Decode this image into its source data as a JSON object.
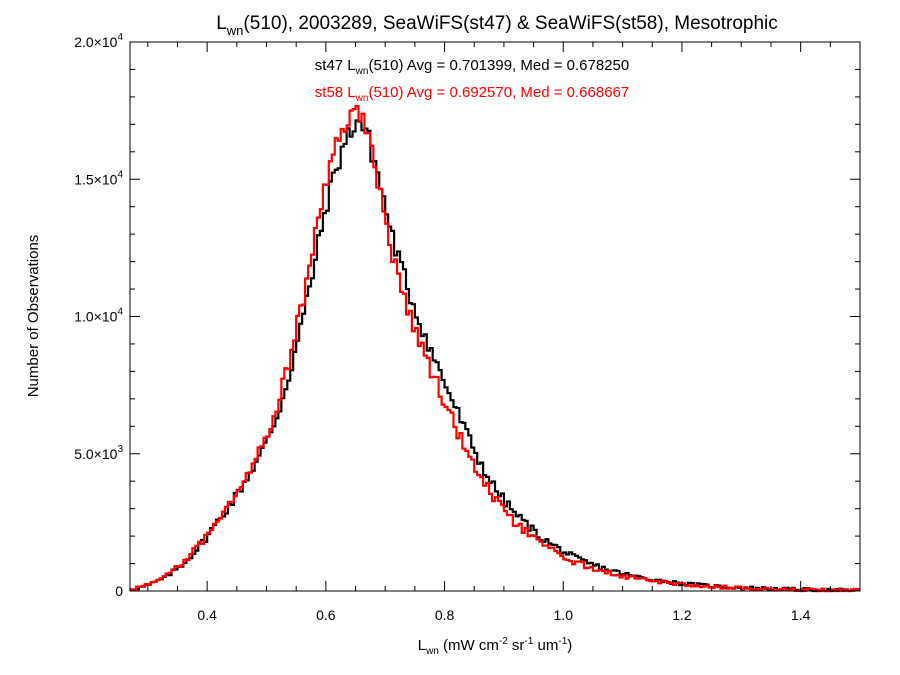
{
  "chart_data": {
    "type": "line",
    "title": {
      "main": "L",
      "sub": "wn",
      "rest": "(510), 2003289, SeaWiFS(st47) & SeaWiFS(st58), Mesotrophic"
    },
    "xlabel": {
      "main": "L",
      "sub": "wn",
      "units_pre": " (mW cm",
      "sup1": "-2",
      "mid1": " sr",
      "sup2": "-1",
      "mid2": " um",
      "sup3": "-1",
      "close": ")"
    },
    "ylabel": "Number of Observations",
    "xlim": [
      0.27,
      1.5
    ],
    "ylim": [
      0,
      20000
    ],
    "x_ticks": [
      {
        "value": 0.4,
        "label": "0.4"
      },
      {
        "value": 0.6,
        "label": "0.6"
      },
      {
        "value": 0.8,
        "label": "0.8"
      },
      {
        "value": 1.0,
        "label": "1.0"
      },
      {
        "value": 1.2,
        "label": "1.2"
      },
      {
        "value": 1.4,
        "label": "1.4"
      }
    ],
    "y_ticks": [
      {
        "value": 0,
        "mant": "0",
        "exp": ""
      },
      {
        "value": 5000,
        "mant": "5.0×10",
        "exp": "3"
      },
      {
        "value": 10000,
        "mant": "1.0×10",
        "exp": "4"
      },
      {
        "value": 15000,
        "mant": "1.5×10",
        "exp": "4"
      },
      {
        "value": 20000,
        "mant": "2.0×10",
        "exp": "4"
      }
    ],
    "annotations": [
      {
        "color": "#000000",
        "pre": "st47 L",
        "sub": "wn",
        "post": "(510) Avg = 0.701399, Med = 0.678250"
      },
      {
        "color": "#ff0000",
        "pre": "st58 L",
        "sub": "wn",
        "post": "(510) Avg = 0.692570, Med = 0.668667"
      }
    ],
    "series": [
      {
        "color": "#000000",
        "bin_width": 0.005,
        "x": [
          0.27,
          0.3,
          0.33,
          0.36,
          0.39,
          0.42,
          0.45,
          0.48,
          0.5,
          0.52,
          0.54,
          0.56,
          0.58,
          0.6,
          0.61,
          0.62,
          0.63,
          0.64,
          0.65,
          0.655,
          0.66,
          0.67,
          0.68,
          0.69,
          0.7,
          0.71,
          0.72,
          0.73,
          0.74,
          0.75,
          0.76,
          0.78,
          0.8,
          0.82,
          0.84,
          0.86,
          0.88,
          0.9,
          0.92,
          0.94,
          0.96,
          0.98,
          1.0,
          1.02,
          1.05,
          1.08,
          1.11,
          1.15,
          1.2,
          1.25,
          1.3,
          1.35,
          1.4,
          1.45,
          1.5
        ],
        "y": [
          50,
          200,
          500,
          1000,
          1700,
          2600,
          3500,
          4600,
          5400,
          6500,
          8000,
          9800,
          11800,
          14000,
          14800,
          15600,
          16200,
          16700,
          17100,
          17200,
          17000,
          16600,
          15800,
          15000,
          14000,
          13100,
          12300,
          11600,
          10900,
          10300,
          9700,
          8600,
          7600,
          6600,
          5600,
          4700,
          3900,
          3300,
          2800,
          2400,
          2000,
          1700,
          1450,
          1200,
          950,
          750,
          580,
          420,
          270,
          180,
          120,
          80,
          50,
          30,
          20
        ]
      },
      {
        "color": "#ff0000",
        "bin_width": 0.005,
        "x": [
          0.27,
          0.3,
          0.33,
          0.36,
          0.39,
          0.42,
          0.45,
          0.48,
          0.5,
          0.52,
          0.54,
          0.56,
          0.58,
          0.6,
          0.61,
          0.62,
          0.63,
          0.64,
          0.645,
          0.65,
          0.66,
          0.67,
          0.68,
          0.69,
          0.7,
          0.71,
          0.72,
          0.73,
          0.74,
          0.75,
          0.76,
          0.78,
          0.8,
          0.82,
          0.84,
          0.86,
          0.88,
          0.9,
          0.92,
          0.94,
          0.96,
          0.98,
          1.0,
          1.02,
          1.05,
          1.08,
          1.11,
          1.15,
          1.2,
          1.25,
          1.3,
          1.35,
          1.4,
          1.45,
          1.5
        ],
        "y": [
          50,
          220,
          520,
          1050,
          1750,
          2700,
          3600,
          4800,
          5700,
          6900,
          8500,
          10500,
          12600,
          14900,
          15700,
          16400,
          16900,
          17300,
          17500,
          17500,
          17200,
          16700,
          15800,
          14700,
          13600,
          12500,
          11600,
          10900,
          10200,
          9600,
          9000,
          7900,
          6900,
          5900,
          5000,
          4200,
          3500,
          2900,
          2450,
          2100,
          1750,
          1500,
          1250,
          1050,
          830,
          650,
          500,
          370,
          240,
          160,
          110,
          70,
          45,
          28,
          18
        ]
      }
    ]
  }
}
